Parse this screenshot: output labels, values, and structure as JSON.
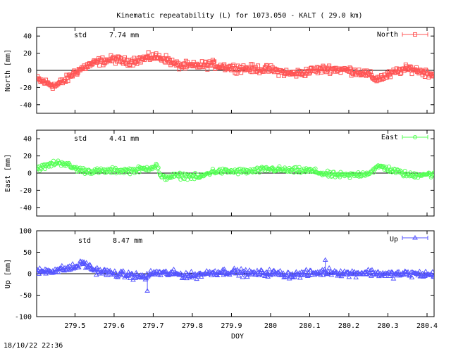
{
  "title": "Kinematic repeatability (L) for 1073.050 - KALT  ( 29.0 km)",
  "timestamp": "18/10/22 22:36",
  "colors": {
    "north": "#ff5555",
    "east": "#55ff55",
    "up": "#5555ff",
    "axis": "#000000"
  },
  "chart_data": [
    {
      "type": "scatter",
      "name": "North",
      "legend": "North",
      "legend_position": "top-right",
      "marker": "square",
      "ylabel": "North [mm]",
      "std_label": "std",
      "std_value": "7.74 mm",
      "ylim": [
        -50,
        50
      ],
      "yticks": [
        "40",
        "20",
        "0",
        "-20",
        "-40"
      ],
      "ytick_values": [
        40,
        20,
        0,
        -20,
        -40
      ],
      "xlim": [
        279.402,
        280.418
      ],
      "trend": {
        "x": [
          279.4,
          279.43,
          279.45,
          279.48,
          279.5,
          279.53,
          279.56,
          279.6,
          279.63,
          279.66,
          279.7,
          279.73,
          279.76,
          279.8,
          279.85,
          279.9,
          279.95,
          280.0,
          280.05,
          280.08,
          280.11,
          280.15,
          280.2,
          280.24,
          280.27,
          280.3,
          280.33,
          280.36,
          280.39,
          280.42
        ],
        "y": [
          -10,
          -15,
          -18,
          -10,
          -2,
          5,
          10,
          13,
          10,
          12,
          16,
          14,
          6,
          5,
          7,
          3,
          2,
          1,
          -4,
          -3,
          0,
          2,
          0,
          -3,
          -10,
          -6,
          0,
          2,
          -2,
          -5
        ]
      },
      "noise": 4
    },
    {
      "type": "scatter",
      "name": "East",
      "legend": "East",
      "legend_position": "top-right",
      "marker": "circle",
      "ylabel": "East [mm]",
      "std_label": "std",
      "std_value": "4.41 mm",
      "ylim": [
        -50,
        50
      ],
      "yticks": [
        "40",
        "20",
        "0",
        "-20",
        "-40"
      ],
      "ytick_values": [
        40,
        20,
        0,
        -20,
        -40
      ],
      "xlim": [
        279.402,
        280.418
      ],
      "trend": {
        "x": [
          279.4,
          279.42,
          279.45,
          279.47,
          279.49,
          279.52,
          279.56,
          279.6,
          279.64,
          279.68,
          279.71,
          279.72,
          279.74,
          279.78,
          279.82,
          279.85,
          279.9,
          279.95,
          280.0,
          280.05,
          280.1,
          280.15,
          280.2,
          280.25,
          280.28,
          280.32,
          280.36,
          280.39,
          280.42
        ],
        "y": [
          6,
          7,
          12,
          12,
          7,
          3,
          2,
          3,
          3,
          5,
          9,
          -6,
          -4,
          -3,
          -5,
          2,
          2,
          2,
          5,
          3,
          3,
          -2,
          -3,
          0,
          8,
          2,
          -3,
          -1,
          -2
        ]
      },
      "noise": 3
    },
    {
      "type": "scatter",
      "name": "Up",
      "legend": "Up",
      "legend_position": "top-right",
      "marker": "triangle",
      "ylabel": "Up [mm]",
      "std_label": "std",
      "std_value": "8.47 mm",
      "ylim": [
        -100,
        100
      ],
      "yticks": [
        "100",
        "50",
        "0",
        "-50",
        "-100"
      ],
      "ytick_values": [
        100,
        50,
        0,
        -50,
        -100
      ],
      "xlim": [
        279.402,
        280.418
      ],
      "xlabel": "DOY",
      "xticks": [
        "279.5",
        "279.6",
        "279.7",
        "279.8",
        "279.9",
        "280",
        "280.1",
        "280.2",
        "280.3",
        "280.4"
      ],
      "xtick_values": [
        279.5,
        279.6,
        279.7,
        279.8,
        279.9,
        280.0,
        280.1,
        280.2,
        280.3,
        280.4
      ],
      "trend": {
        "x": [
          279.4,
          279.45,
          279.5,
          279.52,
          279.55,
          279.6,
          279.65,
          279.68,
          279.7,
          279.75,
          279.8,
          279.85,
          279.9,
          279.95,
          280.0,
          280.05,
          280.1,
          280.15,
          280.2,
          280.25,
          280.3,
          280.35,
          280.42
        ],
        "y": [
          5,
          8,
          15,
          25,
          8,
          0,
          -5,
          -8,
          2,
          0,
          -5,
          3,
          5,
          0,
          2,
          -3,
          0,
          5,
          0,
          3,
          -2,
          0,
          -3
        ]
      },
      "noise": 7,
      "outliers": {
        "x": [
          279.685,
          280.14,
          279.52
        ],
        "y": [
          -40,
          32,
          28
        ]
      }
    }
  ]
}
